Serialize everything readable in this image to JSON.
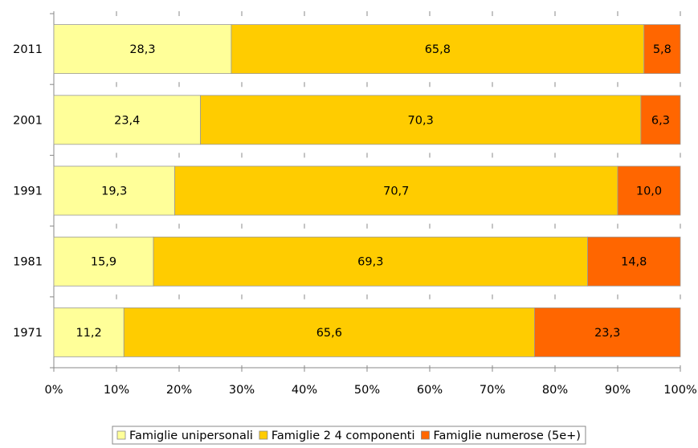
{
  "chart_data": {
    "type": "bar",
    "orientation": "horizontal",
    "stacked": "percent",
    "categories": [
      "2011",
      "2001",
      "1991",
      "1981",
      "1971"
    ],
    "series": [
      {
        "name": "Famiglie unipersonali",
        "values": [
          28.3,
          23.4,
          19.3,
          15.9,
          11.2
        ],
        "labels": [
          "28,3",
          "23,4",
          "19,3",
          "15,9",
          "11,2"
        ],
        "color": "#FFFF99"
      },
      {
        "name": "Famiglie 2 4 componenti",
        "values": [
          65.8,
          70.3,
          70.7,
          69.3,
          65.6
        ],
        "labels": [
          "65,8",
          "70,3",
          "70,7",
          "69,3",
          "65,6"
        ],
        "color": "#FFCC00"
      },
      {
        "name": "Famiglie numerose (5e+)",
        "values": [
          5.8,
          6.3,
          10.0,
          14.8,
          23.3
        ],
        "labels": [
          "5,8",
          "6,3",
          "10,0",
          "14,8",
          "23,3"
        ],
        "color": "#FF6600"
      }
    ],
    "xticks": [
      "0%",
      "10%",
      "20%",
      "30%",
      "40%",
      "50%",
      "60%",
      "70%",
      "80%",
      "90%",
      "100%"
    ],
    "xlim": [
      0,
      100
    ],
    "grid": false,
    "legend": "bottom"
  }
}
